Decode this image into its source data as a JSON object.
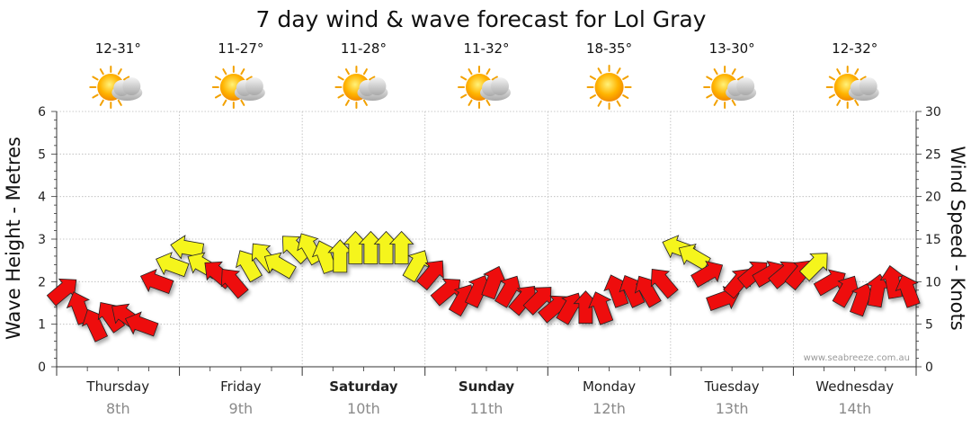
{
  "chart_data": {
    "type": "wind-wave-forecast",
    "title": "7 day wind & wave forecast for Lol Gray",
    "ylabel_left": "Wave Height - Metres",
    "ylabel_right": "Wind Speed - Knots",
    "y_left": {
      "min": 0,
      "max": 6,
      "ticks": [
        "0",
        "1",
        "2",
        "3",
        "4",
        "5",
        "6"
      ]
    },
    "y_right": {
      "min": 0,
      "max": 30,
      "ticks": [
        "0",
        "5",
        "10",
        "15",
        "20",
        "25",
        "30"
      ]
    },
    "days": [
      {
        "name": "Thursday",
        "date": "8th",
        "temp": "12-31°",
        "weather": "sun-cloud-icon",
        "bold": false
      },
      {
        "name": "Friday",
        "date": "9th",
        "temp": "11-27°",
        "weather": "sun-cloud-icon",
        "bold": false
      },
      {
        "name": "Saturday",
        "date": "10th",
        "temp": "11-28°",
        "weather": "sun-cloud-icon",
        "bold": true
      },
      {
        "name": "Sunday",
        "date": "11th",
        "temp": "11-32°",
        "weather": "sun-cloud-icon",
        "bold": true
      },
      {
        "name": "Monday",
        "date": "12th",
        "temp": "18-35°",
        "weather": "sun-icon",
        "bold": false
      },
      {
        "name": "Tuesday",
        "date": "13th",
        "temp": "13-30°",
        "weather": "sun-cloud-icon",
        "bold": false
      },
      {
        "name": "Wednesday",
        "date": "14th",
        "temp": "12-32°",
        "weather": "sun-cloud-icon",
        "bold": false
      }
    ],
    "wind_x_hours": [
      0,
      3,
      6,
      9,
      12,
      15,
      18,
      21,
      24,
      27,
      30,
      33,
      36,
      39,
      42,
      45,
      48,
      51,
      54,
      57,
      60,
      63,
      66,
      69,
      72,
      75,
      78,
      81,
      84,
      87,
      90,
      93,
      96,
      99,
      102,
      105,
      108,
      111,
      114,
      117,
      120,
      123,
      126,
      129,
      132,
      135,
      138,
      141,
      144,
      147,
      150,
      153,
      156,
      159,
      162,
      165
    ],
    "wind_knots": [
      9,
      7,
      5,
      6,
      6,
      5,
      10,
      12,
      14,
      12,
      11,
      10,
      12,
      13,
      12,
      14,
      14,
      13,
      13,
      14,
      14,
      14,
      14,
      12,
      11,
      9,
      8,
      9,
      10,
      9,
      8,
      8,
      7,
      7,
      7,
      7,
      9,
      9,
      9,
      10,
      14,
      13,
      11,
      8,
      10,
      11,
      11,
      11,
      11,
      12,
      10,
      9,
      8,
      9,
      10,
      9
    ],
    "wind_dir_deg": [
      320,
      250,
      245,
      235,
      215,
      200,
      200,
      200,
      190,
      210,
      220,
      230,
      240,
      230,
      210,
      225,
      240,
      250,
      270,
      270,
      270,
      270,
      270,
      300,
      310,
      320,
      300,
      295,
      290,
      300,
      310,
      315,
      320,
      300,
      270,
      250,
      250,
      245,
      240,
      230,
      200,
      210,
      330,
      340,
      310,
      320,
      330,
      320,
      310,
      315,
      330,
      300,
      290,
      280,
      260,
      250
    ],
    "strong_wind_threshold": 12,
    "credit": "www.seabreeze.com.au"
  },
  "colors": {
    "strong_wind": "#f5f51e",
    "normal_wind": "#ee1111",
    "grid": "#b8b8b8",
    "axis": "#333333"
  }
}
